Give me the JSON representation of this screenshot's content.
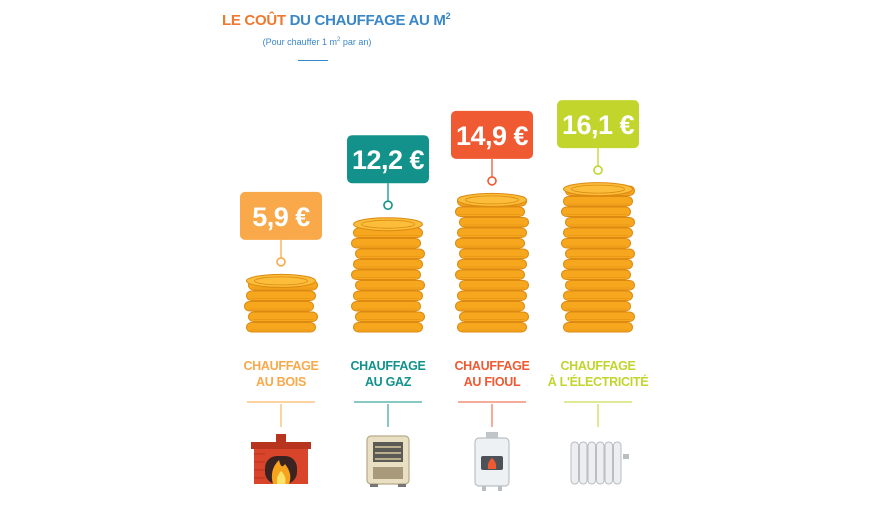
{
  "header": {
    "title_part1": "LE COÛT",
    "title_part2": "DU CHAUFFAGE AU M",
    "title_sup": "2",
    "subtitle_part1": "(Pour chauffer 1 m",
    "subtitle_sup": "2",
    "subtitle_part2": " par an)"
  },
  "colors": {
    "bois": "#f9a94a",
    "gaz": "#12928a",
    "fioul": "#ef5a33",
    "electricite": "#c2d52d",
    "coin": "#f6a71d",
    "coin_dark": "#dc8a12"
  },
  "chart_data": {
    "type": "bar",
    "categories": [
      "CHAUFFAGE AU BOIS",
      "CHAUFFAGE AU GAZ",
      "CHAUFFAGE AU FIOUL",
      "CHAUFFAGE À L'ÉLECTRICITÉ"
    ],
    "values": [
      5.9,
      12.2,
      14.9,
      16.1
    ],
    "value_labels": [
      "5,9 €",
      "12,2 €",
      "14,9 €",
      "16,1 €"
    ],
    "category_lines": [
      [
        "CHAUFFAGE",
        "AU BOIS"
      ],
      [
        "CHAUFFAGE",
        "AU GAZ"
      ],
      [
        "CHAUFFAGE",
        "AU FIOUL"
      ],
      [
        "CHAUFFAGE",
        "À L'ÉLECTRICITÉ"
      ]
    ],
    "icons": [
      "fireplace-icon",
      "gas-heater-icon",
      "oil-boiler-icon",
      "electric-radiator-icon"
    ],
    "bar_style": "stacked-coins",
    "grid": false,
    "legend": "none"
  }
}
